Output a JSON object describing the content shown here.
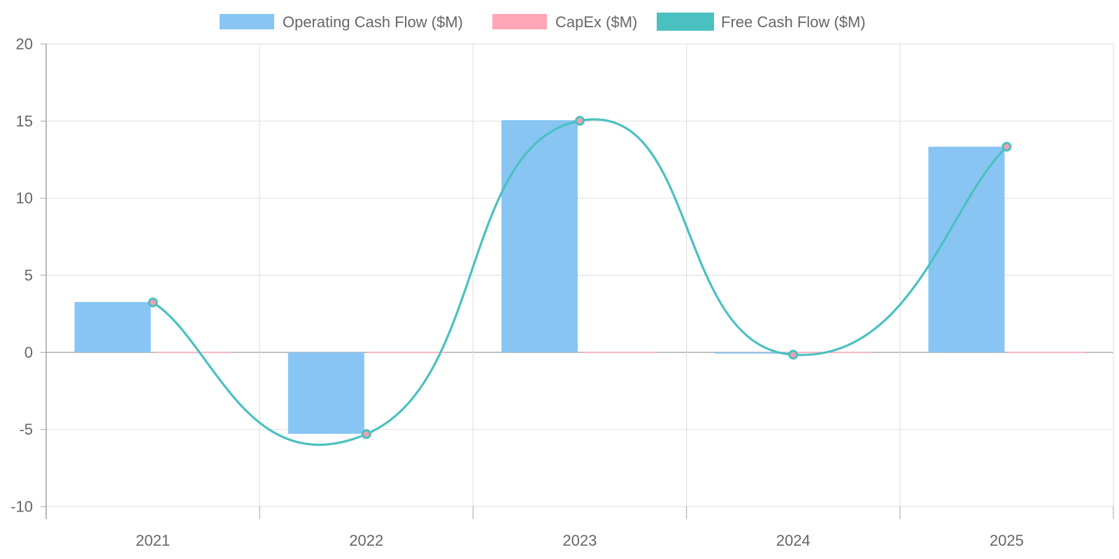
{
  "chart_data": {
    "type": "bar",
    "categories": [
      "2021",
      "2022",
      "2023",
      "2024",
      "2025"
    ],
    "series": [
      {
        "name": "Operating Cash Flow ($M)",
        "kind": "bar",
        "values": [
          3.27,
          -5.28,
          15.06,
          -0.08,
          13.34
        ],
        "color": "#88c5f3"
      },
      {
        "name": "CapEx ($M)",
        "kind": "bar",
        "values": [
          -0.03,
          -0.02,
          0.04,
          -0.02,
          0.0
        ],
        "color": "#ffa5b5"
      },
      {
        "name": "Free Cash Flow ($M)",
        "kind": "line",
        "values": [
          3.24,
          -5.3,
          15.02,
          -0.15,
          13.34
        ],
        "color": "#4bc0c0"
      }
    ],
    "yticks": [
      20,
      15,
      10,
      5,
      0,
      -5,
      -10
    ],
    "ylim": [
      -10,
      20
    ],
    "grid": true,
    "legend_position": "top-center"
  }
}
